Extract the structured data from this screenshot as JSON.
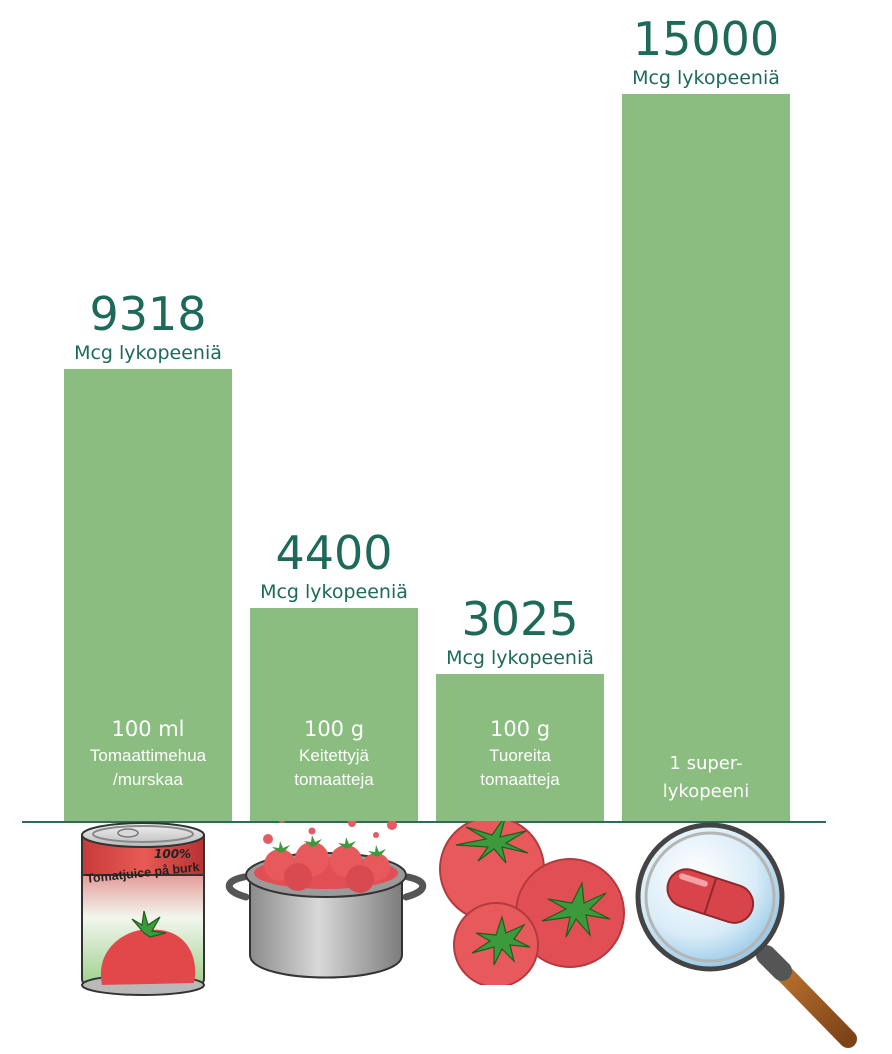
{
  "chart_data": {
    "type": "bar",
    "categories": [
      "100 ml Tomaattimehua /murskaa",
      "100 g Keitettyjä tomaatteja",
      "100 g Tuoreita tomaatteja",
      "1 super-lykopeeni"
    ],
    "values": [
      9318,
      4400,
      3025,
      15000
    ],
    "value_labels": [
      "9318",
      "4400",
      "3025",
      "15000"
    ],
    "unit_label": "Mcg lykopeeniä",
    "ylim": [
      0,
      15000
    ],
    "bar_color": "#8abd7f",
    "text_color": "#1d6a5a",
    "grid": false,
    "bars": [
      {
        "line1": "100 ml",
        "line2": "Tomaattimehua",
        "line3": "/murskaa",
        "illustration": "tomato-juice-can-icon"
      },
      {
        "line1": "100 g",
        "line2": "Keitettyjä",
        "line3": "tomaatteja",
        "illustration": "cooking-pot-icon"
      },
      {
        "line1": "100 g",
        "line2": "Tuoreita",
        "line3": "tomaatteja",
        "illustration": "fresh-tomatoes-icon"
      },
      {
        "line1": "",
        "line2": "1  super-",
        "line3": "lykopeeni",
        "illustration": "magnifier-capsule-icon"
      }
    ]
  },
  "can_label": {
    "percent": "100%",
    "text": "Tomatjuice på burk"
  }
}
